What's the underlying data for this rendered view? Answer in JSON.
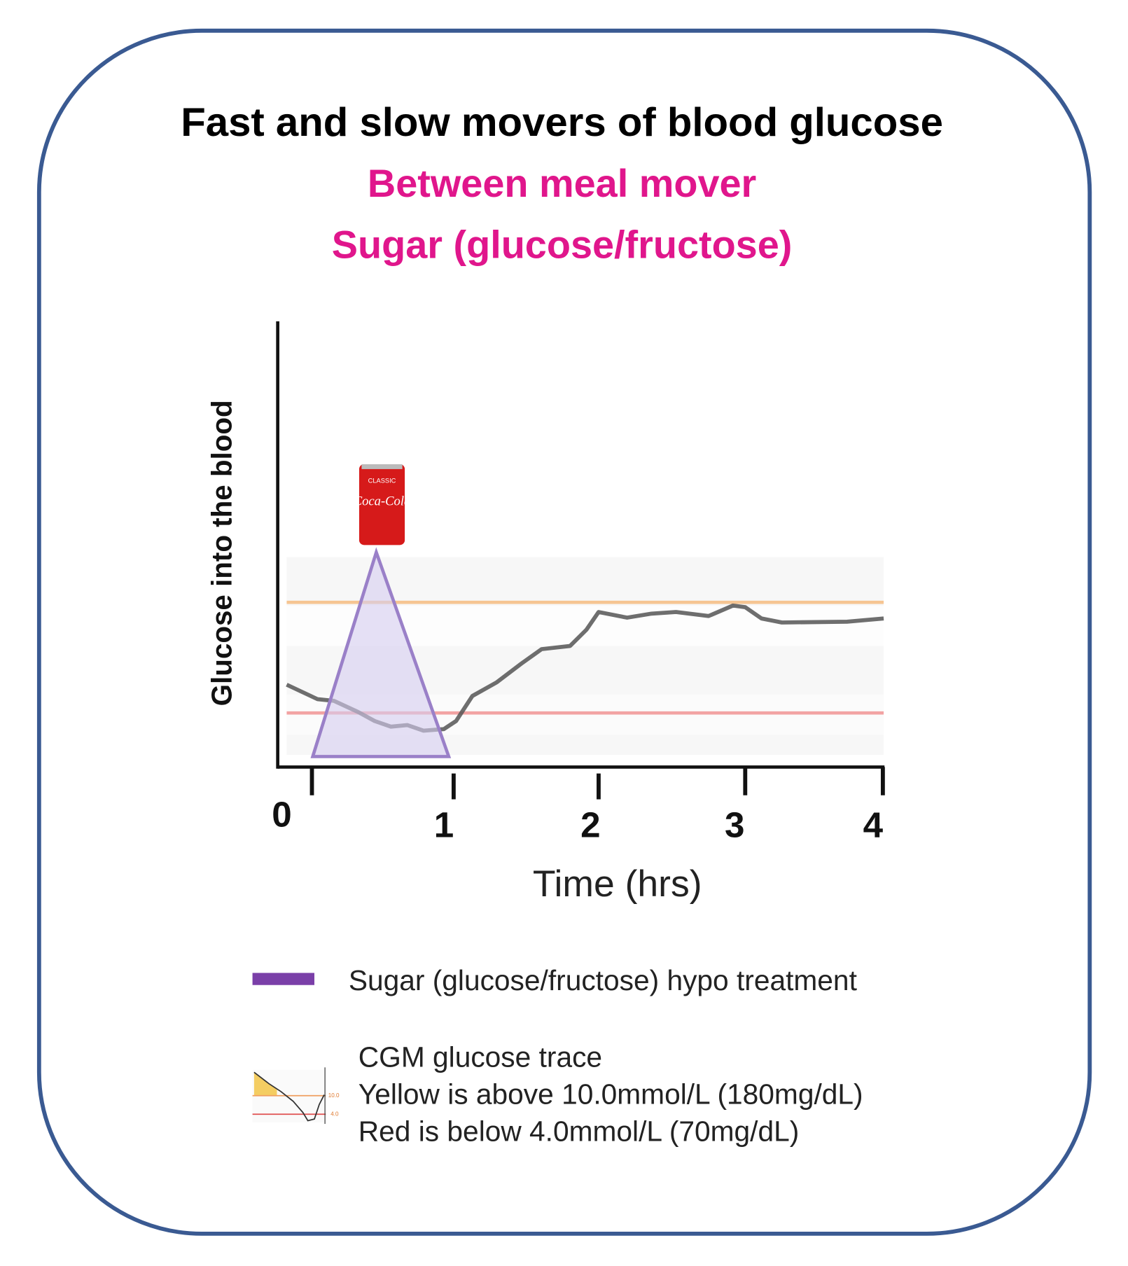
{
  "header": {
    "title": "Fast and slow movers of blood  glucose",
    "subtitle_lines": [
      "Between meal mover",
      "Sugar (glucose/fructose)"
    ]
  },
  "graph": {
    "y_axis_label": "Glucose into the blood",
    "x_axis_label": "Time (hrs)",
    "x_ticks": [
      "0",
      "1",
      "2",
      "3",
      "4"
    ],
    "can_labels": [
      "CLASSIC",
      "Coca-Cola"
    ]
  },
  "legend": {
    "items": [
      {
        "label": "Sugar (glucose/fructose) hypo treatment"
      },
      {
        "lines": [
          "CGM glucose trace",
          "Yellow is above 10.0mmol/L (180mg/dL)",
          "Red is below 4.0mmol/L (70mg/dL)"
        ],
        "icon_labels": [
          "10.0",
          "4.0"
        ]
      }
    ]
  }
}
